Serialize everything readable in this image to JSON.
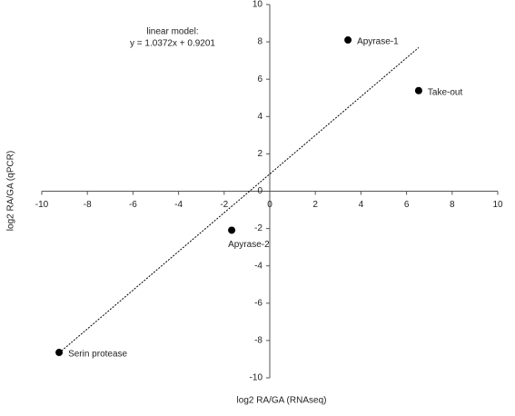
{
  "chart_data": {
    "type": "scatter",
    "annotation": [
      "linear model:",
      "y = 1.0372x + 0.9201"
    ],
    "x_label": "log2 RA/GA (RNAseq)",
    "y_label": "log2 RA/GA (qPCR)",
    "x": [
      3.43,
      6.53,
      -1.67,
      -9.24
    ],
    "values": [
      8.1,
      5.39,
      -2.09,
      -8.64
    ],
    "point_labels": [
      "Apyrase-1",
      "Take-out",
      "Apyrase-2",
      "Serin protease"
    ],
    "color": "#000000",
    "trendline": {
      "slope": 1.0372,
      "intercept": 0.9201,
      "color": "#000000"
    },
    "xlim": [
      -10,
      10
    ],
    "ylim": [
      -10,
      10
    ],
    "xticks": [
      -10,
      -8,
      -6,
      -4,
      -2,
      0,
      2,
      4,
      6,
      8,
      10
    ],
    "yticks": [
      -10,
      -8,
      -6,
      -4,
      -2,
      0,
      2,
      4,
      6,
      8,
      10
    ]
  }
}
